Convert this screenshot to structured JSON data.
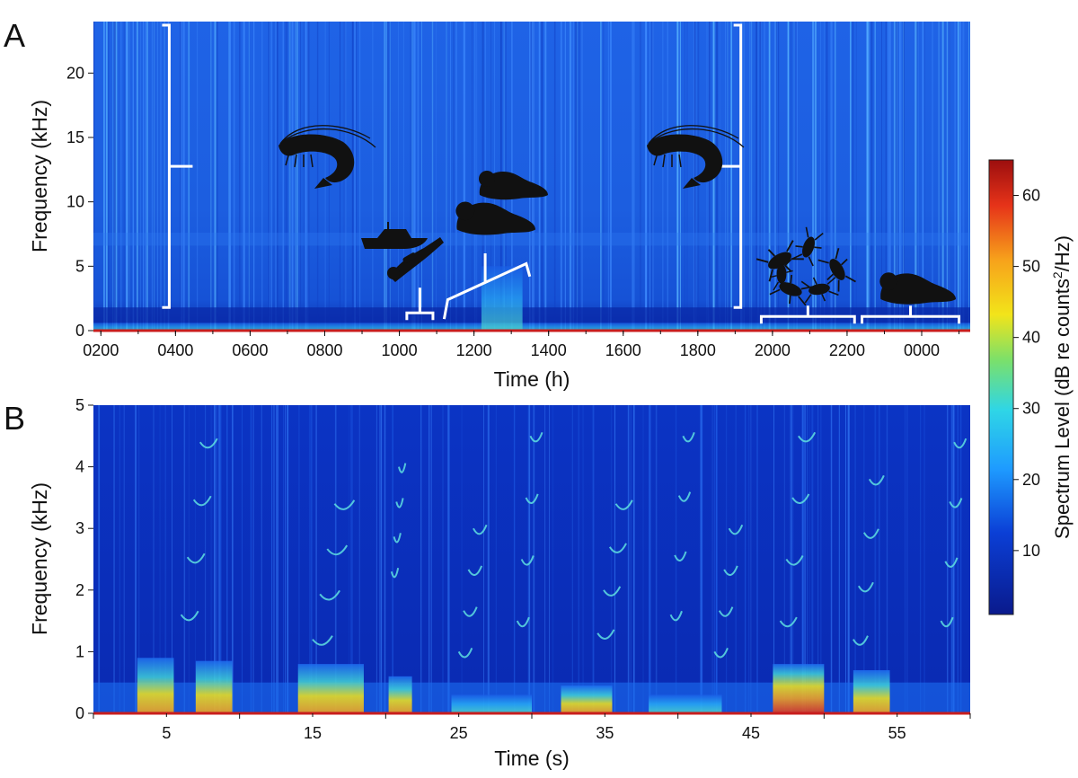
{
  "colors": {
    "background": "#0b3fd6",
    "low": "#0a23a8",
    "medium": "#1e9bff",
    "high": "#f2e41a",
    "hot": "#e63319",
    "baseline": "#c81e1e",
    "annotation": "#ffffff",
    "silhouette": "#111111"
  },
  "chart_data": [
    {
      "panel": "A",
      "type": "heatmap",
      "title": "",
      "xlabel": "Time (h)",
      "ylabel": "Frequency (kHz)",
      "x_ticks": [
        "0200",
        "0400",
        "0600",
        "0800",
        "1000",
        "1200",
        "1400",
        "1600",
        "1800",
        "2000",
        "2200",
        "0000"
      ],
      "x_tick_hours": [
        2,
        4,
        6,
        8,
        10,
        12,
        14,
        16,
        18,
        20,
        22,
        24
      ],
      "xlim_hours": [
        1.8,
        25.3
      ],
      "y_ticks": [
        0,
        5,
        10,
        15,
        20
      ],
      "ylim": [
        0,
        24
      ],
      "annotations": [
        {
          "label": "shrimp-icon",
          "hours": [
            1.8,
            6.0
          ],
          "freq_khz": [
            1.8,
            24
          ],
          "bracket": "vertical"
        },
        {
          "label": "shrimp-icon",
          "hours": [
            19.2,
            25.3
          ],
          "freq_khz": [
            1.8,
            24
          ],
          "bracket": "vertical"
        },
        {
          "label": "boat-diver-icon",
          "hours": [
            10.2,
            10.9
          ],
          "freq_khz": [
            0,
            1.8
          ],
          "bracket": "horizontal"
        },
        {
          "label": "seal-icon",
          "hours": [
            11.2,
            13.4
          ],
          "freq_khz": [
            0,
            5.2
          ],
          "bracket": "sloped"
        },
        {
          "label": "invertebrate-icon",
          "hours": [
            19.7,
            22.2
          ],
          "freq_khz": [
            0,
            1.1
          ],
          "bracket": "horizontal"
        },
        {
          "label": "seal-icon",
          "hours": [
            22.4,
            25.0
          ],
          "freq_khz": [
            0,
            1.1
          ],
          "bracket": "horizontal"
        }
      ],
      "energy_bands": [
        {
          "hours": [
            1.8,
            25.3
          ],
          "freq_khz": [
            0,
            0.6
          ],
          "level": "medium"
        },
        {
          "hours": [
            12.2,
            13.3
          ],
          "freq_khz": [
            0,
            5.0
          ],
          "level": "medium"
        }
      ]
    },
    {
      "panel": "B",
      "type": "heatmap",
      "title": "",
      "xlabel": "Time (s)",
      "ylabel": "Frequency (kHz)",
      "x_ticks": [
        5,
        15,
        25,
        35,
        45,
        55
      ],
      "x_minor_ticks": [
        0,
        10,
        20,
        30,
        40,
        50,
        60
      ],
      "xlim": [
        0,
        60
      ],
      "y_ticks": [
        0,
        1,
        2,
        3,
        4,
        5
      ],
      "ylim": [
        0,
        5
      ],
      "energy_bands": [
        {
          "t": [
            3.0,
            5.5
          ],
          "freq_khz": [
            0,
            0.9
          ],
          "level": "high"
        },
        {
          "t": [
            7.0,
            9.5
          ],
          "freq_khz": [
            0,
            0.85
          ],
          "level": "high"
        },
        {
          "t": [
            14.0,
            18.5
          ],
          "freq_khz": [
            0,
            0.8
          ],
          "level": "high"
        },
        {
          "t": [
            20.2,
            21.8
          ],
          "freq_khz": [
            0,
            0.6
          ],
          "level": "high"
        },
        {
          "t": [
            24.5,
            30.0
          ],
          "freq_khz": [
            0,
            0.3
          ],
          "level": "medium"
        },
        {
          "t": [
            32.0,
            35.5
          ],
          "freq_khz": [
            0,
            0.45
          ],
          "level": "high"
        },
        {
          "t": [
            38.0,
            43.0
          ],
          "freq_khz": [
            0,
            0.3
          ],
          "level": "medium"
        },
        {
          "t": [
            46.5,
            50.0
          ],
          "freq_khz": [
            0,
            0.8
          ],
          "level": "hot"
        },
        {
          "t": [
            52.0,
            54.5
          ],
          "freq_khz": [
            0,
            0.7
          ],
          "level": "high"
        }
      ],
      "calls": [
        {
          "t": [
            6.0,
            8.6
          ],
          "freq_khz": [
            1.6,
            4.4
          ]
        },
        {
          "t": [
            15.0,
            18.0
          ],
          "freq_khz": [
            1.2,
            3.4
          ]
        },
        {
          "t": [
            20.4,
            21.4
          ],
          "freq_khz": [
            2.3,
            4.0
          ]
        },
        {
          "t": [
            25.0,
            27.0
          ],
          "freq_khz": [
            1.0,
            3.0
          ]
        },
        {
          "t": [
            29.0,
            30.8
          ],
          "freq_khz": [
            1.5,
            4.5
          ]
        },
        {
          "t": [
            34.5,
            37.0
          ],
          "freq_khz": [
            1.3,
            3.4
          ]
        },
        {
          "t": [
            39.5,
            41.2
          ],
          "freq_khz": [
            1.6,
            4.5
          ]
        },
        {
          "t": [
            42.5,
            44.5
          ],
          "freq_khz": [
            1.0,
            3.0
          ]
        },
        {
          "t": [
            47.0,
            49.5
          ],
          "freq_khz": [
            1.5,
            4.5
          ]
        },
        {
          "t": [
            52.0,
            54.2
          ],
          "freq_khz": [
            1.2,
            3.8
          ]
        },
        {
          "t": [
            58.0,
            59.8
          ],
          "freq_khz": [
            1.5,
            4.4
          ]
        }
      ]
    }
  ],
  "colorbar": {
    "title": "Spectrum Level (dB re counts",
    "title_superscript": "2",
    "title_suffix": "/Hz)",
    "ticks": [
      10,
      20,
      30,
      40,
      50,
      60
    ],
    "range": [
      1,
      65
    ]
  },
  "panel_letters": [
    "A",
    "B"
  ]
}
